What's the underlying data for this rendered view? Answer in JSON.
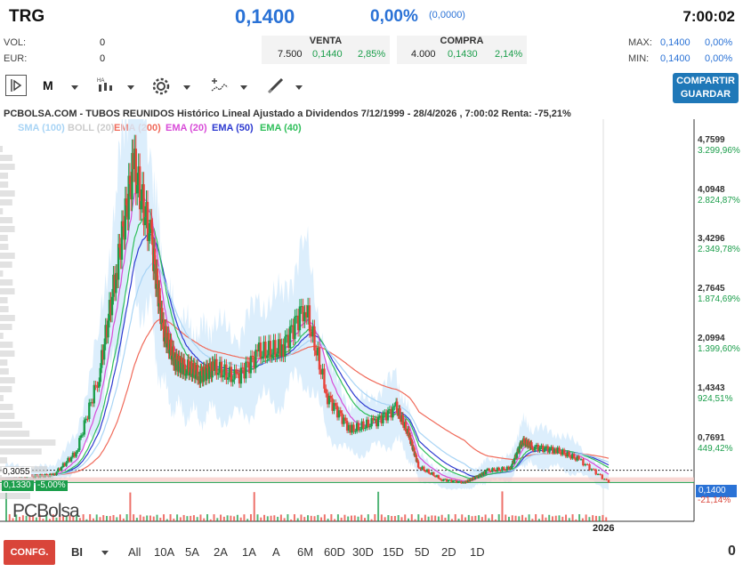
{
  "header": {
    "ticker": "TRG",
    "price": "0,1400",
    "change_pct": "0,00%",
    "change_abs": "(0,0000)",
    "time": "7:00:02"
  },
  "stats": {
    "vol_label": "VOL:",
    "vol_value": "0",
    "eur_label": "EUR:",
    "eur_value": "0",
    "max_label": "MAX:",
    "max_value": "0,1400",
    "max_pct": "0,00%",
    "min_label": "MIN:",
    "min_value": "0,1400",
    "min_pct": "0,00%"
  },
  "venta": {
    "label": "VENTA",
    "qty": "7.500",
    "price": "0,1440",
    "pct": "2,85%"
  },
  "compra": {
    "label": "COMPRA",
    "qty": "4.000",
    "price": "0,1430",
    "pct": "2,14%"
  },
  "toolbar": {
    "timeframe": "M",
    "share_line1": "COMPARTIR",
    "share_line2": "GUARDAR"
  },
  "chart": {
    "title": "PCBOLSA.COM - TUBOS REUNIDOS Histórico Lineal Ajustado a Dividendos 7/12/1999 - 28/4/2026 , 7:00:02 Renta: -75,21%",
    "legend": [
      {
        "label": "SMA (100)",
        "color": "#a8d4f5"
      },
      {
        "label": "BOLL (20)",
        "color": "#cccccc"
      },
      {
        "label": "EMA (200)",
        "color": "#f06a5a"
      },
      {
        "label": "EMA (20)",
        "color": "#d84bd8"
      },
      {
        "label": "EMA (50)",
        "color": "#2d3ad0"
      },
      {
        "label": "EMA (40)",
        "color": "#2fbf5a"
      }
    ],
    "y_ticks": [
      {
        "price": "4,7599",
        "pct": "3.299,96%"
      },
      {
        "price": "4,0948",
        "pct": "2.824,87%"
      },
      {
        "price": "3,4296",
        "pct": "2.349,78%"
      },
      {
        "price": "2,7645",
        "pct": "1.874,69%"
      },
      {
        "price": "2,0994",
        "pct": "1.399,60%"
      },
      {
        "price": "1,4343",
        "pct": "924,51%"
      },
      {
        "price": "0,7691",
        "pct": "449,42%"
      }
    ],
    "current_price_tag": "0,1400",
    "bottom_pct": "-21,14%",
    "left_tag_top": "0,3055",
    "left_tag_bottom": "0,1330",
    "left_tag_bottom_pct": "-5,00%",
    "year_label": "2026",
    "watermark": "PCBolsa"
  },
  "chart_data": {
    "type": "line",
    "title": "PCBOLSA.COM - TUBOS REUNIDOS Histórico Lineal Ajustado a Dividendos 7/12/1999 - 28/4/2026 , 7:00:02 Renta: -75,21%",
    "x": [
      1999.9,
      2001,
      2002,
      2003,
      2004,
      2004.8,
      2005.5,
      2006.3,
      2006.8,
      2007.3,
      2007.8,
      2008.4,
      2009,
      2010,
      2011,
      2012,
      2013,
      2014,
      2015,
      2016,
      2017,
      2017.6,
      2018,
      2019,
      2020,
      2020.5,
      2021,
      2022,
      2022.5,
      2023,
      2024,
      2025,
      2026.3
    ],
    "series": [
      {
        "name": "",
        "values": [
          0.25,
          0.22,
          0.24,
          0.55,
          1.6,
          3.1,
          4.45,
          3.4,
          2.2,
          1.8,
          1.7,
          1.6,
          1.7,
          1.55,
          1.9,
          1.95,
          2.55,
          1.3,
          0.85,
          0.95,
          1.15,
          0.75,
          0.35,
          0.18,
          0.14,
          0.21,
          0.3,
          0.33,
          0.7,
          0.62,
          0.58,
          0.45,
          0.14
        ]
      }
    ],
    "ylim": [
      0.0,
      4.9
    ],
    "y_tick_values": [
      4.7599,
      4.0948,
      3.4296,
      2.7645,
      2.0994,
      1.4343,
      0.7691
    ],
    "grid": false
  },
  "periods": {
    "config": "CONFG.",
    "interval": "BI",
    "items": [
      "All",
      "10A",
      "5A",
      "2A",
      "1A",
      "A",
      "6M",
      "60D",
      "30D",
      "15D",
      "5D",
      "2D",
      "1D"
    ],
    "right_value": "0"
  }
}
